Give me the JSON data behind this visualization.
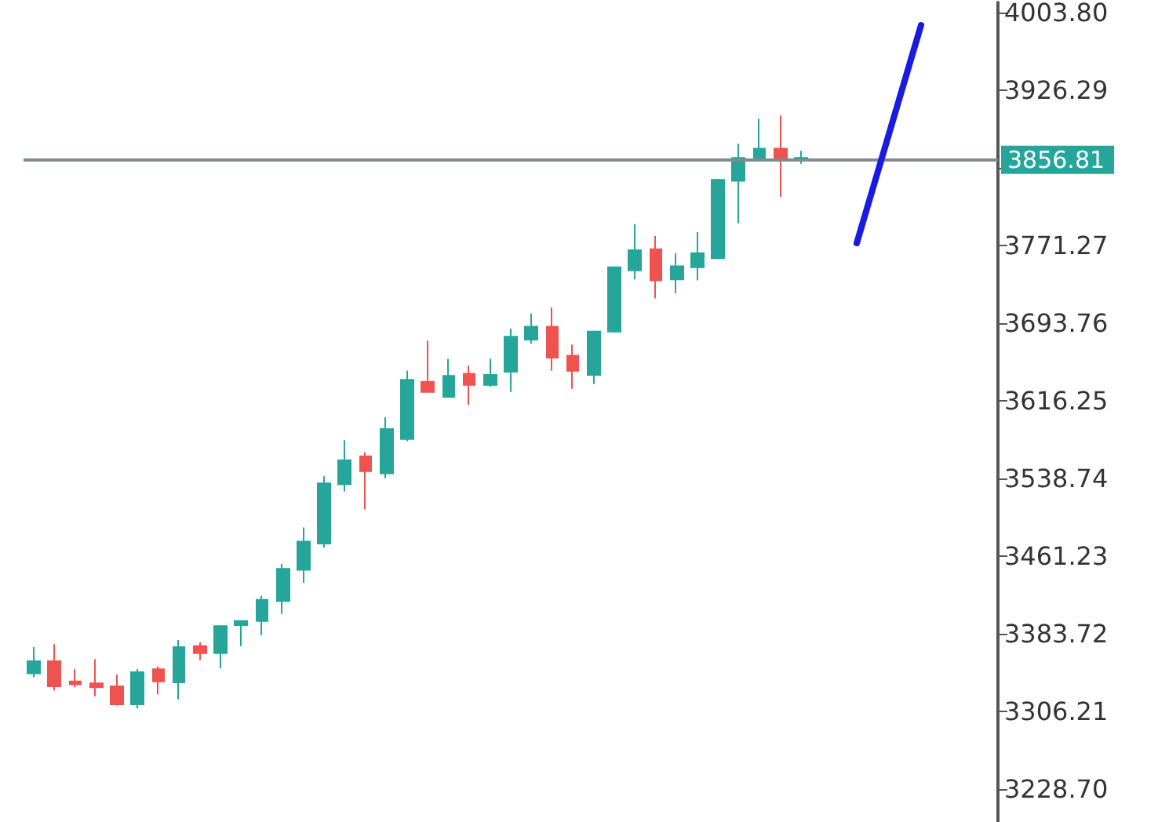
{
  "chart_data": {
    "type": "candlestick",
    "categories": [
      null,
      null,
      null,
      null,
      null,
      null,
      null,
      null,
      null,
      null,
      null,
      null,
      null,
      null,
      null,
      null,
      null,
      null,
      null,
      null,
      null,
      null,
      null,
      null,
      null,
      null,
      null,
      null,
      null,
      null,
      null,
      null,
      null,
      null,
      null,
      null,
      null,
      null,
      null,
      null,
      null,
      null,
      null,
      null,
      null,
      null,
      null
    ],
    "ohlc": [
      [
        3344,
        3370,
        3340,
        3356
      ],
      [
        3356,
        3373,
        3327,
        3331
      ],
      [
        3336,
        3348,
        3330,
        3333
      ],
      [
        3334,
        3358,
        3321,
        3330
      ],
      [
        3331,
        3343,
        3312,
        3313
      ],
      [
        3313,
        3348,
        3309,
        3345
      ],
      [
        3348,
        3351,
        3323,
        3336
      ],
      [
        3335,
        3377,
        3318,
        3370
      ],
      [
        3371,
        3375,
        3357,
        3364
      ],
      [
        3364,
        3392,
        3349,
        3391
      ],
      [
        3392,
        3396,
        3371,
        3396
      ],
      [
        3396,
        3421,
        3382,
        3417
      ],
      [
        3416,
        3453,
        3403,
        3448
      ],
      [
        3447,
        3489,
        3434,
        3475
      ],
      [
        3473,
        3540,
        3469,
        3533
      ],
      [
        3532,
        3576,
        3525,
        3556
      ],
      [
        3560,
        3564,
        3507,
        3545
      ],
      [
        3543,
        3599,
        3538,
        3587
      ],
      [
        3577,
        3645,
        3575,
        3636
      ],
      [
        3634,
        3675,
        3624,
        3624
      ],
      [
        3619,
        3657,
        3619,
        3640
      ],
      [
        3642,
        3650,
        3611,
        3631
      ],
      [
        3631,
        3657,
        3629,
        3641
      ],
      [
        3644,
        3687,
        3624,
        3679
      ],
      [
        3676,
        3702,
        3672,
        3689
      ],
      [
        3689,
        3708,
        3645,
        3658
      ],
      [
        3660,
        3671,
        3627,
        3645
      ],
      [
        3641,
        3685,
        3632,
        3684
      ],
      [
        3684,
        3749,
        3683,
        3748
      ],
      [
        3745,
        3791,
        3736,
        3765
      ],
      [
        3766,
        3779,
        3717,
        3735
      ],
      [
        3736,
        3762,
        3722,
        3749
      ],
      [
        3748,
        3783,
        3735,
        3762
      ],
      [
        3757,
        3836,
        3756,
        3835
      ],
      [
        3834,
        3871,
        3792,
        3857
      ],
      [
        3855,
        3896,
        3853,
        3866
      ],
      [
        3866,
        3899,
        3818,
        3856
      ],
      [
        3855,
        3864,
        3851,
        3857
      ],
      null,
      null,
      null,
      null,
      null,
      null,
      null,
      null,
      null
    ],
    "colors": [
      "#26a69a",
      "#ef5350",
      "#ef5350",
      "#ef5350",
      "#ef5350",
      "#26a69a",
      "#ef5350",
      "#26a69a",
      "#ef5350",
      "#26a69a",
      "#26a69a",
      "#26a69a",
      "#26a69a",
      "#26a69a",
      "#26a69a",
      "#26a69a",
      "#ef5350",
      "#26a69a",
      "#26a69a",
      "#ef5350",
      "#26a69a",
      "#ef5350",
      "#26a69a",
      "#26a69a",
      "#26a69a",
      "#ef5350",
      "#ef5350",
      "#26a69a",
      "#26a69a",
      "#26a69a",
      "#ef5350",
      "#26a69a",
      "#26a69a",
      "#26a69a",
      "#26a69a",
      "#26a69a",
      "#ef5350",
      "#26a69a",
      null,
      null,
      null,
      null,
      null,
      null,
      null,
      null,
      null
    ],
    "ylim": [
      3196,
      4014
    ],
    "yticks": [
      {
        "value": 4003.8,
        "label": "4003.80"
      },
      {
        "value": 3926.29,
        "label": "3926.29"
      },
      {
        "value": 3848.78,
        "label": null
      },
      {
        "value": 3771.27,
        "label": "3771.27"
      },
      {
        "value": 3693.76,
        "label": "3693.76"
      },
      {
        "value": 3616.25,
        "label": "3616.25"
      },
      {
        "value": 3538.74,
        "label": "3538.74"
      },
      {
        "value": 3461.23,
        "label": "3461.23"
      },
      {
        "value": 3383.72,
        "label": "3383.72"
      },
      {
        "value": 3306.21,
        "label": "3306.21"
      },
      {
        "value": 3228.7,
        "label": "3228.70"
      }
    ],
    "tick_labels": "y",
    "grid": false,
    "ref_lines": [
      {
        "axis": "y",
        "value": 3856.81,
        "label": "3856.81",
        "color": "#7f8c8d"
      }
    ]
  }
}
